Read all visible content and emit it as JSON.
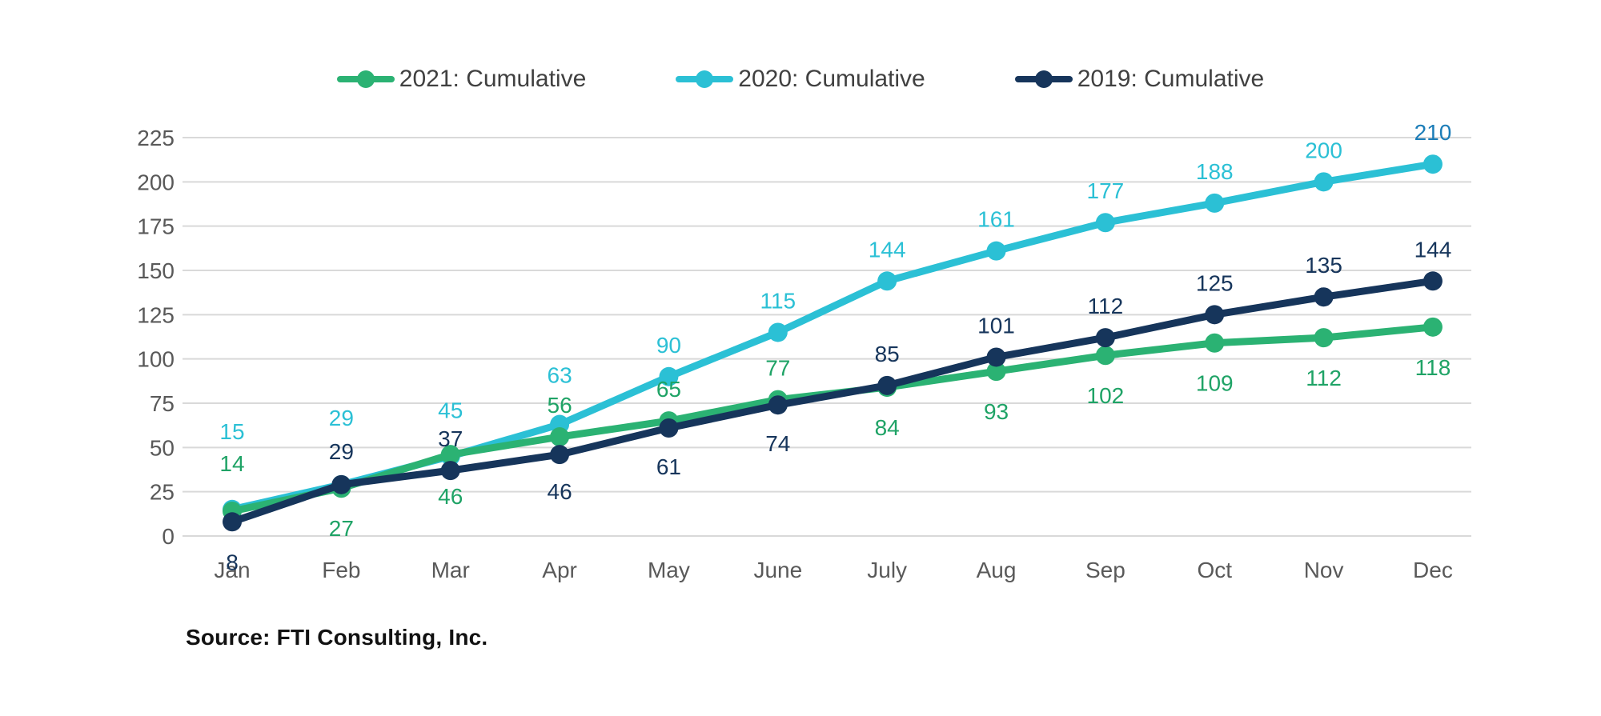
{
  "chart_data": {
    "type": "line",
    "x": [
      "Jan",
      "Feb",
      "Mar",
      "Apr",
      "May",
      "June",
      "July",
      "Aug",
      "Sep",
      "Oct",
      "Nov",
      "Dec"
    ],
    "series": [
      {
        "name": "2021: Cumulative",
        "color": "#2BB273",
        "label_color": "#1FA366",
        "values": [
          14,
          27,
          46,
          56,
          65,
          77,
          84,
          93,
          102,
          109,
          112,
          118
        ],
        "label_dy": [
          -60,
          50,
          52,
          -40,
          -40,
          -40,
          50,
          50,
          50,
          50,
          50,
          50
        ]
      },
      {
        "name": "2020: Cumulative",
        "color": "#2BC0D5",
        "label_color": "#2BC0D5",
        "last_label_color": "#1C7DB8",
        "values": [
          15,
          29,
          45,
          63,
          90,
          115,
          144,
          161,
          177,
          188,
          200,
          210
        ],
        "label_dy": [
          -98,
          -84,
          -58,
          -62,
          -40,
          -40,
          -40,
          -40,
          -40,
          -40,
          -40,
          -40
        ]
      },
      {
        "name": "2019: Cumulative",
        "color": "#16355B",
        "label_color": "#16355B",
        "values": [
          8,
          29,
          37,
          46,
          61,
          74,
          85,
          101,
          112,
          125,
          135,
          144
        ],
        "label_dy": [
          50,
          -42,
          -40,
          46,
          48,
          48,
          -40,
          -40,
          -40,
          -40,
          -40,
          -40
        ]
      }
    ],
    "draw_order": [
      1,
      0,
      2
    ],
    "ylim": [
      0,
      225
    ],
    "ytick_step": 25,
    "ytick_labels": [
      "0",
      "25",
      "50",
      "75",
      "100",
      "125",
      "150",
      "175",
      "200",
      "225"
    ],
    "grid": "horizontal",
    "gridline_color": "#D9D9D9",
    "axis_label_color": "#595959",
    "legend_position": "top",
    "title": "",
    "xlabel": "",
    "ylabel": ""
  },
  "source_note": "Source: FTI Consulting, Inc."
}
